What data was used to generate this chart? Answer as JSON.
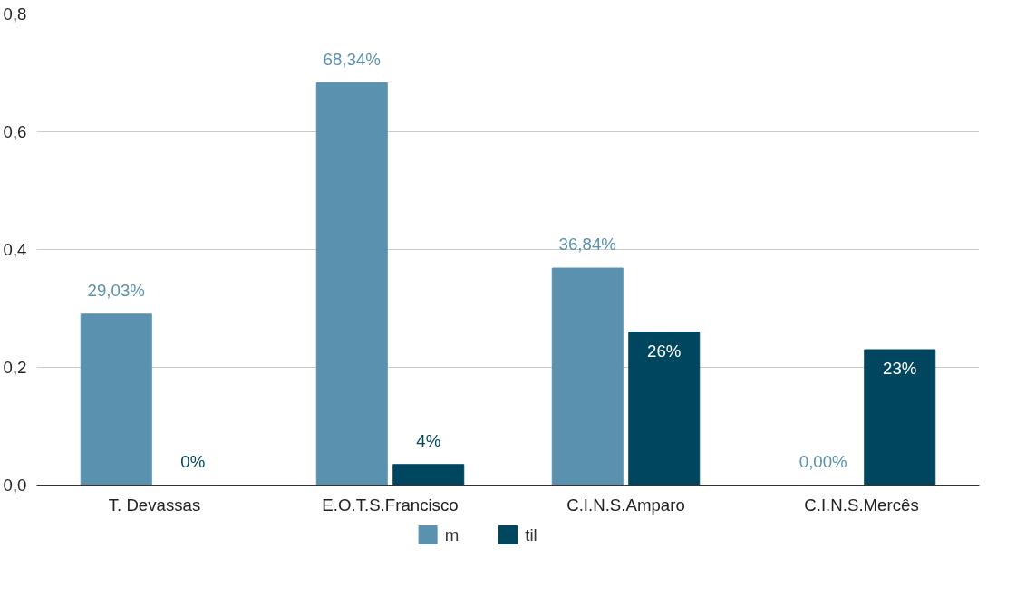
{
  "chart_data": {
    "type": "bar",
    "categories": [
      "T. Devassas",
      "E.O.T.S.Francisco",
      "C.I.N.S.Amparo",
      "C.I.N.S.Mercês"
    ],
    "series": [
      {
        "name": "m",
        "color": "#5a91ae",
        "values": [
          0.2903,
          0.6834,
          0.3684,
          0.0
        ],
        "value_labels": [
          "29,03%",
          "68,34%",
          "36,84%",
          "0,00%"
        ]
      },
      {
        "name": "til",
        "color": "#00465f",
        "values": [
          0.0,
          0.035,
          0.26,
          0.23
        ],
        "value_labels": [
          "0%",
          "4%",
          "26%",
          "23%"
        ]
      }
    ],
    "ylim": [
      0,
      0.8
    ],
    "yticks": [
      {
        "value": 0,
        "label": "0,0"
      },
      {
        "value": 0.2,
        "label": "0,2"
      },
      {
        "value": 0.4,
        "label": "0,4"
      },
      {
        "value": 0.6,
        "label": "0,6"
      },
      {
        "value": 0.8,
        "label": "0,8"
      }
    ],
    "grid": "y",
    "legend": "bottom"
  }
}
